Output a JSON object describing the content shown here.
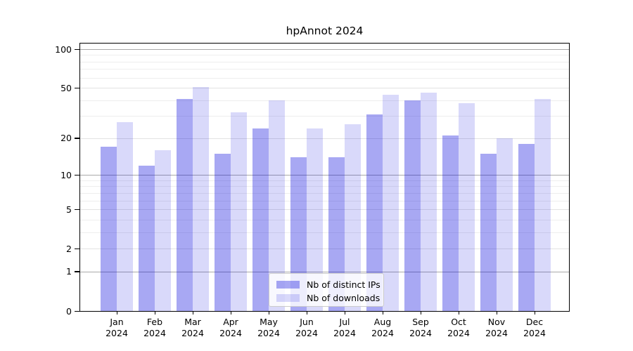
{
  "chart_data": {
    "type": "bar",
    "title": "hpAnnot 2024",
    "yscale": "log(1+y)",
    "ylim": [
      0,
      112
    ],
    "yticks": [
      0,
      1,
      2,
      5,
      10,
      20,
      50,
      100
    ],
    "yticks_dark_grid": [
      1,
      10,
      100
    ],
    "yticks_minor": [
      3,
      4,
      6,
      7,
      8,
      9,
      30,
      40,
      60,
      70,
      80,
      90
    ],
    "grid": true,
    "legend_position": "lower center",
    "x_ticks": [
      {
        "month": "Jan",
        "year": "2024"
      },
      {
        "month": "Feb",
        "year": "2024"
      },
      {
        "month": "Mar",
        "year": "2024"
      },
      {
        "month": "Apr",
        "year": "2024"
      },
      {
        "month": "May",
        "year": "2024"
      },
      {
        "month": "Jun",
        "year": "2024"
      },
      {
        "month": "Jul",
        "year": "2024"
      },
      {
        "month": "Aug",
        "year": "2024"
      },
      {
        "month": "Sep",
        "year": "2024"
      },
      {
        "month": "Oct",
        "year": "2024"
      },
      {
        "month": "Nov",
        "year": "2024"
      },
      {
        "month": "Dec",
        "year": "2024"
      }
    ],
    "series": [
      {
        "name": "Nb of distinct IPs",
        "key": "distinct-ips",
        "color": "rgba(0,0,220,0.34)",
        "values": [
          17,
          12,
          41,
          15,
          24,
          14,
          14,
          31,
          40,
          21,
          15,
          18
        ]
      },
      {
        "name": "Nb of downloads",
        "key": "downloads",
        "color": "rgba(0,0,220,0.15)",
        "values": [
          27,
          16,
          51,
          32,
          40,
          24,
          26,
          44,
          46,
          38,
          20,
          41
        ]
      }
    ]
  }
}
